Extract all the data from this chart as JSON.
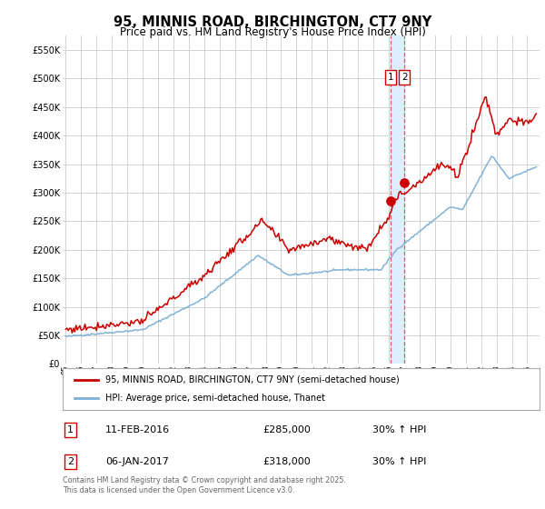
{
  "title": "95, MINNIS ROAD, BIRCHINGTON, CT7 9NY",
  "subtitle": "Price paid vs. HM Land Registry's House Price Index (HPI)",
  "legend_red": "95, MINNIS ROAD, BIRCHINGTON, CT7 9NY (semi-detached house)",
  "legend_blue": "HPI: Average price, semi-detached house, Thanet",
  "transaction1_date": "11-FEB-2016",
  "transaction1_price": 285000,
  "transaction1_hpi": "30% ↑ HPI",
  "transaction2_date": "06-JAN-2017",
  "transaction2_price": 318000,
  "transaction2_hpi": "30% ↑ HPI",
  "transaction1_x": 2016.11,
  "transaction2_x": 2017.02,
  "red_color": "#cc0000",
  "blue_color": "#7bafd4",
  "vline_color": "#cc0000",
  "vband_color": "#ddeeff",
  "grid_color": "#cccccc",
  "bg_color": "#ffffff",
  "footnote": "Contains HM Land Registry data © Crown copyright and database right 2025.\nThis data is licensed under the Open Government Licence v3.0.",
  "ylim": [
    0,
    575000
  ],
  "yticks": [
    0,
    50000,
    100000,
    150000,
    200000,
    250000,
    300000,
    350000,
    400000,
    450000,
    500000,
    550000
  ],
  "xmin": 1994.8,
  "xmax": 2025.8
}
